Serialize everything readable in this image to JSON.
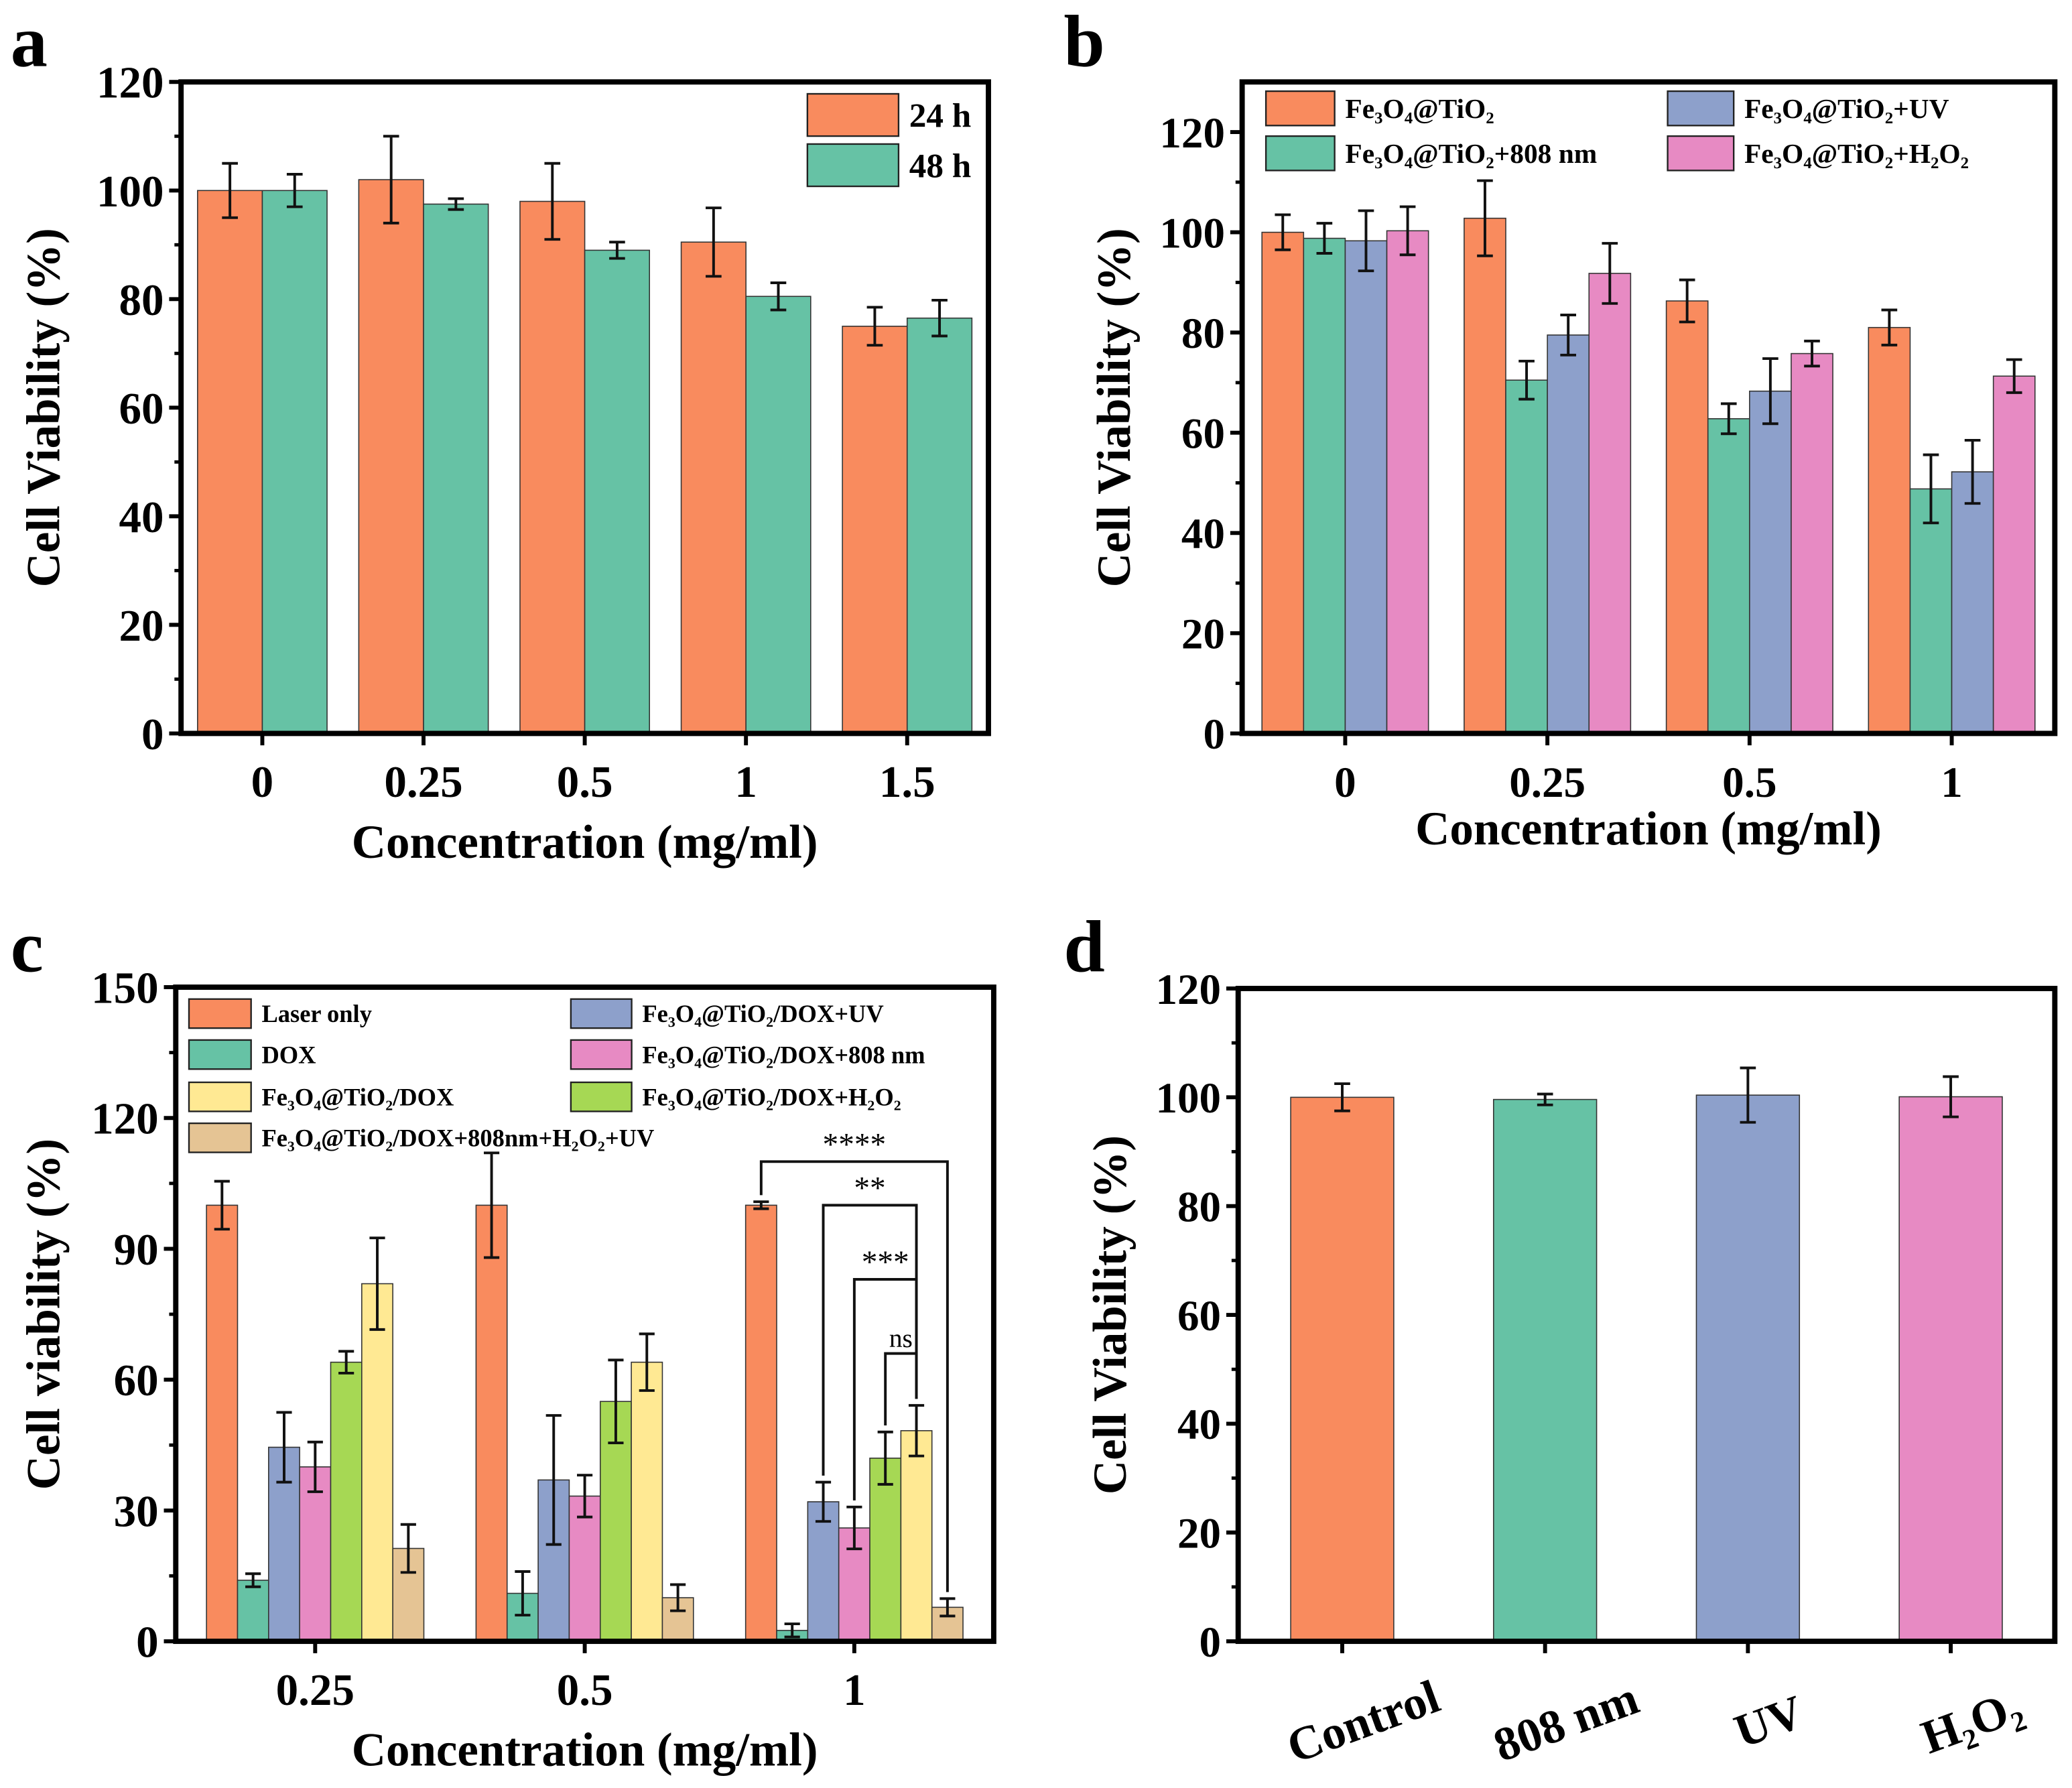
{
  "colors": {
    "orange": "#F98B5E",
    "green": "#66C2A5",
    "blue": "#8DA0CB",
    "pink": "#E78AC3",
    "lime": "#A6D854",
    "yellow": "#FFE993",
    "tan": "#E5C494"
  },
  "chart_data": [
    {
      "panel_label": "a",
      "type": "bar",
      "xlabel": "Concentration (mg/ml)",
      "ylabel": "Cell Viability (%)",
      "ylim": [
        0,
        120
      ],
      "yticks": [
        0,
        20,
        40,
        60,
        80,
        100,
        120
      ],
      "categories": [
        "0",
        "0.25",
        "0.5",
        "1",
        "1.5"
      ],
      "legend_position": "top-right",
      "series": [
        {
          "name": "24 h",
          "color": "#F98B5E",
          "values": [
            100,
            102,
            98,
            90.5,
            75
          ],
          "errors": [
            5,
            8,
            7,
            6.3,
            3.5
          ]
        },
        {
          "name": "48 h",
          "color": "#66C2A5",
          "values": [
            100,
            97.5,
            89,
            80.5,
            76.5
          ],
          "errors": [
            3,
            1,
            1.5,
            2.5,
            3.3
          ]
        }
      ]
    },
    {
      "panel_label": "b",
      "type": "bar",
      "xlabel": "Concentration (mg/ml)",
      "ylabel": "Cell Viability (%)",
      "ylim": [
        0,
        130
      ],
      "yticks": [
        0,
        20,
        40,
        60,
        80,
        100,
        120
      ],
      "categories": [
        "0",
        "0.25",
        "0.5",
        "1"
      ],
      "legend_position": "top",
      "series": [
        {
          "name": "Fe₃O₄@TiO₂",
          "color": "#F98B5E",
          "values": [
            100,
            102.8,
            86.3,
            81
          ],
          "errors": [
            3.5,
            7.5,
            4.2,
            3.5
          ]
        },
        {
          "name": "Fe₃O₄@TiO₂+808 nm",
          "color": "#66C2A5",
          "values": [
            98.8,
            70.5,
            62.8,
            48.8
          ],
          "errors": [
            3,
            3.8,
            3,
            6.8
          ]
        },
        {
          "name": "Fe₃O₄@TiO₂+UV",
          "color": "#8DA0CB",
          "values": [
            98.3,
            79.5,
            68.3,
            52.2
          ],
          "errors": [
            6,
            4,
            6.5,
            6.3
          ]
        },
        {
          "name": "Fe₃O₄@TiO₂+H₂O₂",
          "color": "#E78AC3",
          "values": [
            100.3,
            91.8,
            75.8,
            71.3
          ],
          "errors": [
            4.8,
            6,
            2.5,
            3.3
          ]
        }
      ]
    },
    {
      "panel_label": "c",
      "type": "bar",
      "xlabel": "Concentration (mg/ml)",
      "ylabel": "Cell viability (%)",
      "ylim": [
        0,
        150
      ],
      "yticks": [
        0,
        30,
        60,
        90,
        120,
        150
      ],
      "categories": [
        "0.25",
        "0.5",
        "1"
      ],
      "legend_position": "top",
      "series": [
        {
          "name": "Laser only",
          "color": "#F98B5E",
          "values": [
            100,
            100,
            100
          ],
          "errors": [
            5.5,
            12,
            0.8
          ]
        },
        {
          "name": "DOX",
          "color": "#66C2A5",
          "values": [
            14,
            11,
            2.5
          ],
          "errors": [
            1.5,
            5,
            1.5
          ]
        },
        {
          "name": "Fe₃O₄@TiO₂/DOX+UV",
          "color": "#8DA0CB",
          "values": [
            44.5,
            37,
            32
          ],
          "errors": [
            8,
            14.8,
            4.5
          ]
        },
        {
          "name": "Fe₃O₄@TiO₂/DOX+808 nm",
          "color": "#E78AC3",
          "values": [
            40,
            33.3,
            26
          ],
          "errors": [
            5.7,
            4.8,
            4.8
          ]
        },
        {
          "name": "Fe₃O₄@TiO₂/DOX+H₂O₂",
          "color": "#A6D854",
          "values": [
            64,
            55,
            42
          ],
          "errors": [
            2.5,
            9.5,
            6
          ]
        },
        {
          "name": "Fe₃O₄@TiO₂/DOX",
          "color": "#FFE993",
          "values": [
            82,
            64,
            48.3
          ],
          "errors": [
            10.5,
            6.5,
            5.8
          ]
        },
        {
          "name": "Fe₃O₄@TiO₂/DOX+808nm+H₂O₂+UV",
          "color": "#E5C494",
          "values": [
            21.3,
            10,
            7.8
          ],
          "errors": [
            5.5,
            3,
            2
          ]
        }
      ],
      "legend_order": [
        0,
        1,
        5,
        6,
        2,
        3,
        4
      ],
      "significance": [
        {
          "category": "1",
          "from_series": 0,
          "to_series": 6,
          "level": 110,
          "label": "****"
        },
        {
          "category": "1",
          "from_series": 2,
          "to_series": 5,
          "level": 100,
          "label": "**"
        },
        {
          "category": "1",
          "from_series": 3,
          "to_series": 5,
          "level": 83,
          "label": "***"
        },
        {
          "category": "1",
          "from_series": 4,
          "to_series": 5,
          "level": 66,
          "label": "ns"
        }
      ]
    },
    {
      "panel_label": "d",
      "type": "bar",
      "xlabel": "",
      "ylabel": "Cell Viability (%)",
      "ylim": [
        0,
        120
      ],
      "yticks": [
        0,
        20,
        40,
        60,
        80,
        100,
        120
      ],
      "categories": [
        "Control",
        "808 nm",
        "UV",
        "H₂O₂"
      ],
      "series": [
        {
          "values": [
            100,
            99.6,
            100.4,
            100.1
          ],
          "errors": [
            2.5,
            1,
            5,
            3.7
          ],
          "colors": [
            "#F98B5E",
            "#66C2A5",
            "#8DA0CB",
            "#E78AC3"
          ]
        }
      ]
    }
  ]
}
